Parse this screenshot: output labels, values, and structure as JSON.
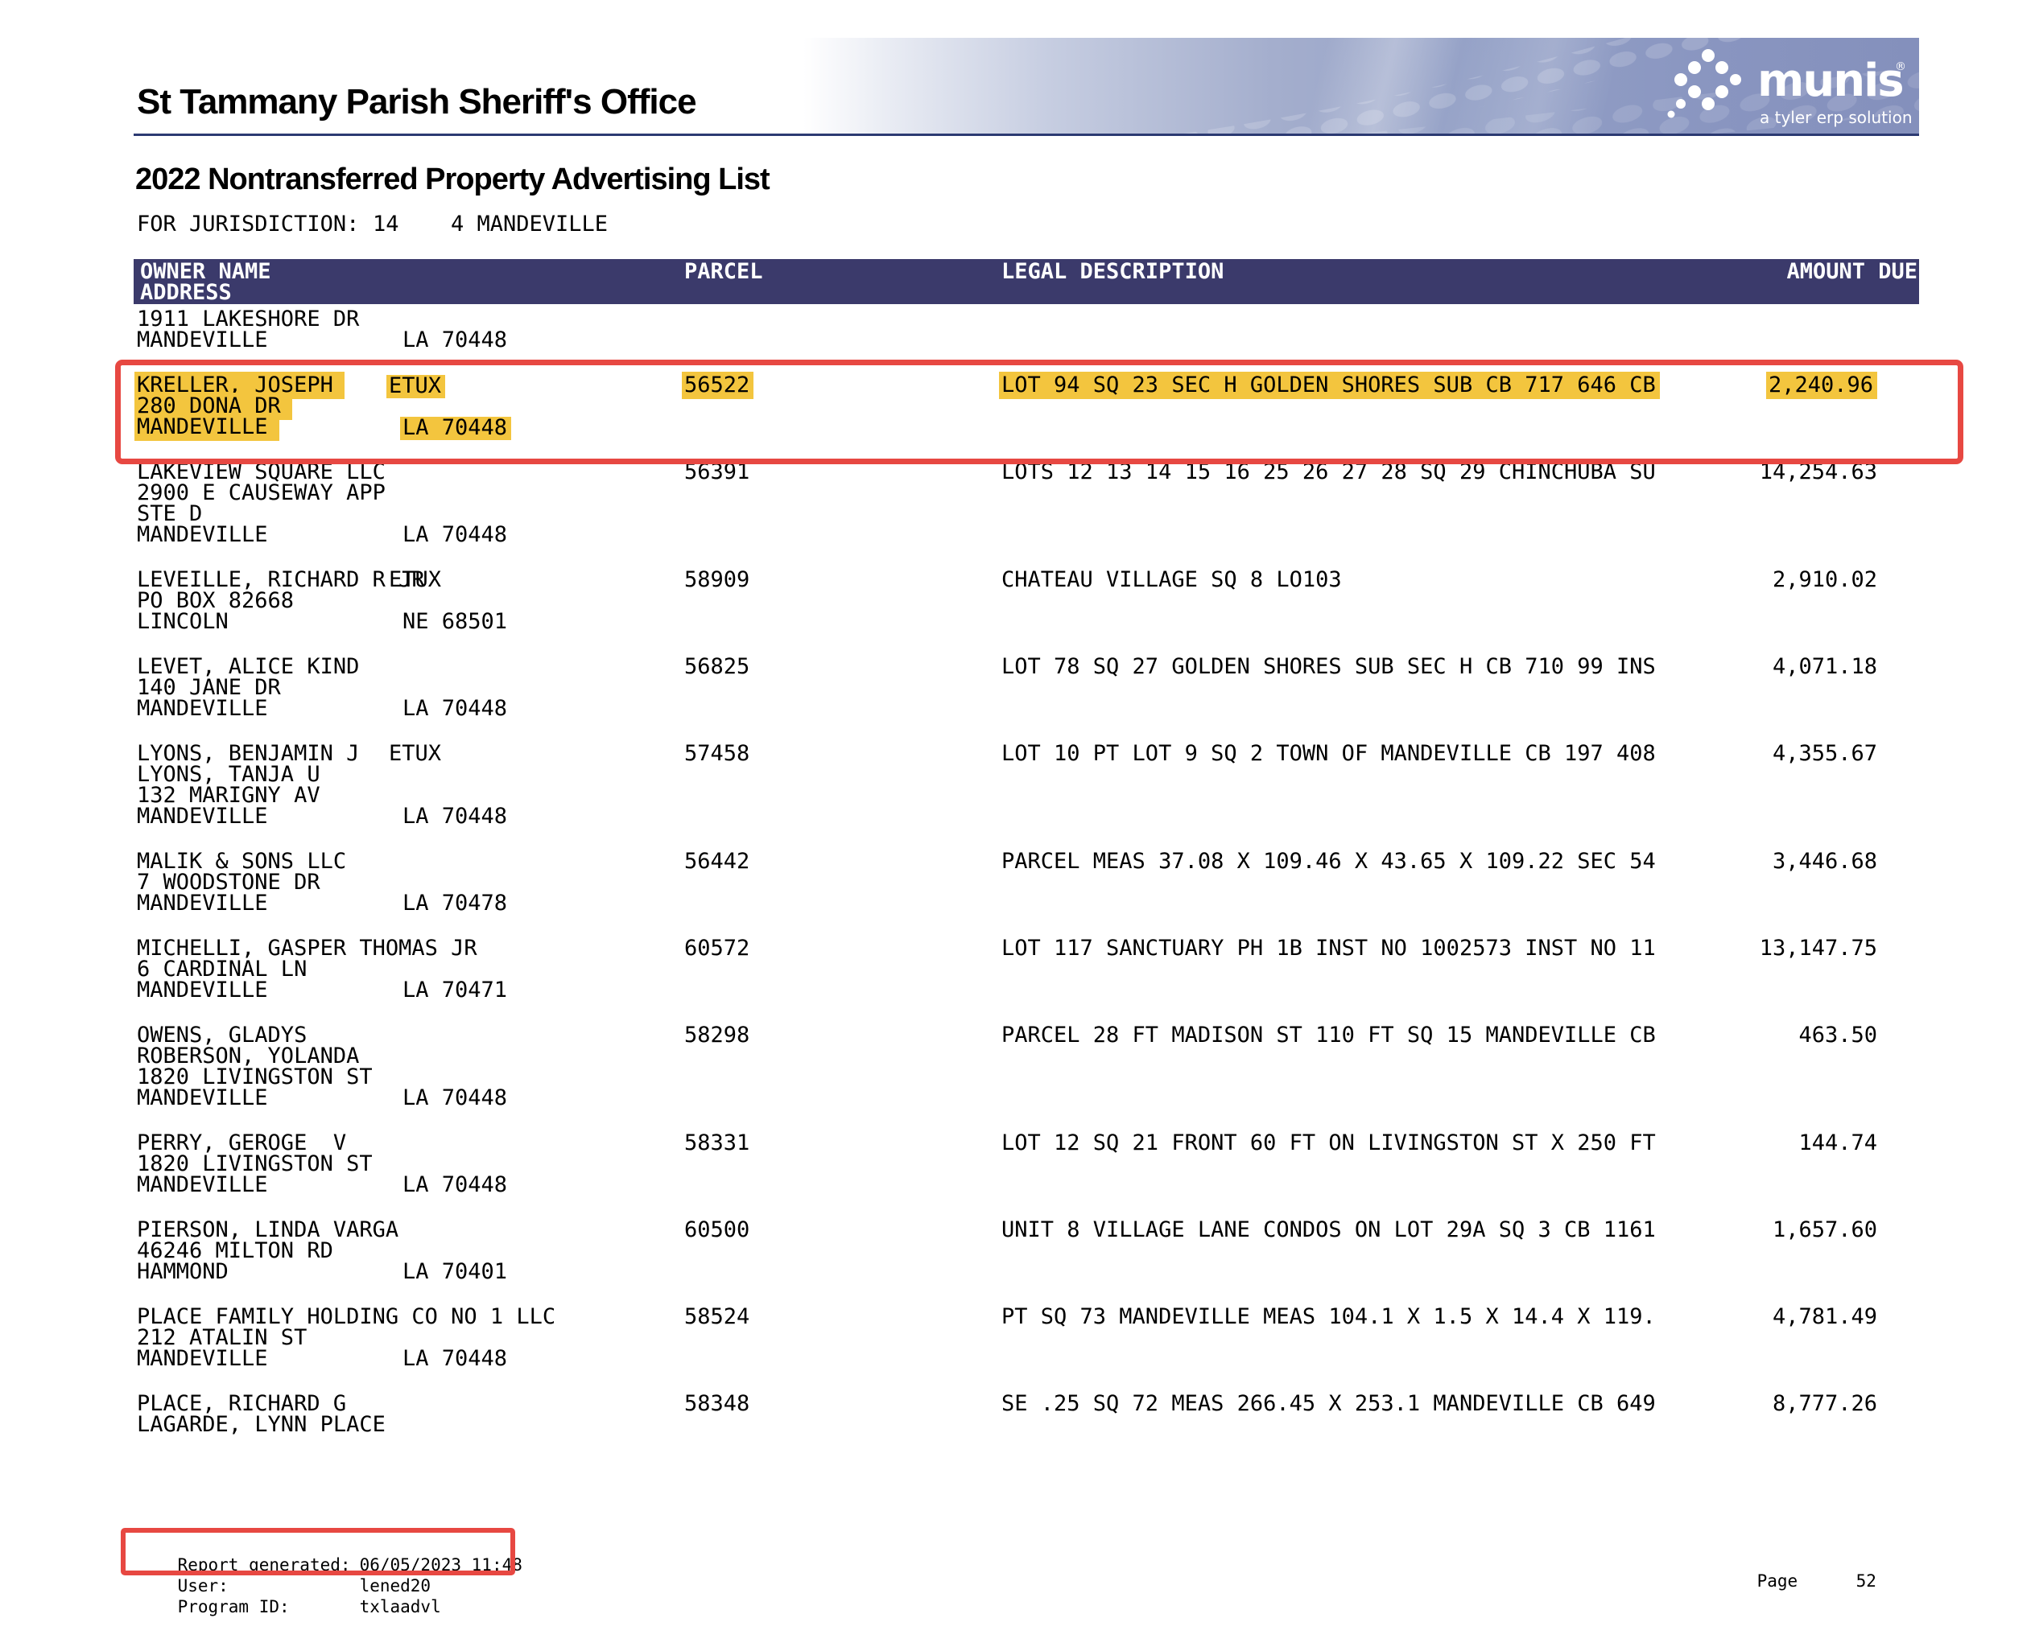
{
  "colors": {
    "header_bar": "#3b3a6b",
    "highlight_yellow": "#f3c53e",
    "annotation_red": "#e74842",
    "banner_blue": "#8490bc",
    "rule_navy": "#2c3a72"
  },
  "header": {
    "agency": "St Tammany Parish Sheriff's Office",
    "report_title": "2022 Nontransferred Property Advertising List",
    "jurisdiction": {
      "label": "FOR JURISDICTION:",
      "code": "14",
      "name": "4 MANDEVILLE"
    },
    "logo": {
      "word": "munis",
      "registered_mark": "®",
      "tagline": "a tyler erp solution"
    }
  },
  "table": {
    "columns": {
      "owner": "OWNER NAME",
      "address": "ADDRESS",
      "parcel": "PARCEL",
      "legal": "LEGAL DESCRIPTION",
      "amount": "AMOUNT DUE"
    },
    "rows": [
      {
        "lines": [
          {
            "t": "1911 LAKESHORE DR"
          },
          {
            "t": "MANDEVILLE",
            "tail": "LA 70448",
            "tk": "s"
          }
        ]
      },
      {
        "hl": true,
        "lines": [
          {
            "t": "KRELLER, JOSEPH",
            "tail": "ETUX",
            "tk": "n"
          },
          {
            "t": "280 DONA DR"
          },
          {
            "t": "MANDEVILLE",
            "tail": "LA 70448",
            "tk": "s"
          }
        ],
        "parcel": "56522",
        "legal": "LOT 94 SQ 23 SEC H GOLDEN SHORES SUB CB 717 646 CB",
        "amount": "2,240.96"
      },
      {
        "lines": [
          {
            "t": "LAKEVIEW SQUARE LLC"
          },
          {
            "t": "2900 E CAUSEWAY APP"
          },
          {
            "t": "STE D"
          },
          {
            "t": "MANDEVILLE",
            "tail": "LA 70448",
            "tk": "s"
          }
        ],
        "parcel": "56391",
        "legal": "LOTS 12 13 14 15 16 25 26 27 28 SQ 29 CHINCHUBA SU",
        "amount": "14,254.63"
      },
      {
        "lines": [
          {
            "t": "LEVEILLE, RICHARD R JR",
            "tail": "ETUX",
            "tk": "n"
          },
          {
            "t": "PO BOX 82668"
          },
          {
            "t": "LINCOLN",
            "tail": "NE 68501",
            "tk": "s"
          }
        ],
        "parcel": "58909",
        "legal": "CHATEAU VILLAGE SQ 8 LO103",
        "amount": "2,910.02"
      },
      {
        "lines": [
          {
            "t": "LEVET, ALICE KIND"
          },
          {
            "t": "140 JANE DR"
          },
          {
            "t": "MANDEVILLE",
            "tail": "LA 70448",
            "tk": "s"
          }
        ],
        "parcel": "56825",
        "legal": "LOT 78 SQ 27 GOLDEN SHORES SUB SEC H CB 710 99 INS",
        "amount": "4,071.18"
      },
      {
        "lines": [
          {
            "t": "LYONS, BENJAMIN J",
            "tail": "ETUX",
            "tk": "n"
          },
          {
            "t": "LYONS, TANJA U"
          },
          {
            "t": "132 MARIGNY AV"
          },
          {
            "t": "MANDEVILLE",
            "tail": "LA 70448",
            "tk": "s"
          }
        ],
        "parcel": "57458",
        "legal": "LOT 10 PT LOT 9 SQ 2 TOWN OF MANDEVILLE CB 197 408",
        "amount": "4,355.67"
      },
      {
        "lines": [
          {
            "t": "MALIK & SONS LLC"
          },
          {
            "t": "7 WOODSTONE DR"
          },
          {
            "t": "MANDEVILLE",
            "tail": "LA 70478",
            "tk": "s"
          }
        ],
        "parcel": "56442",
        "legal": "PARCEL MEAS 37.08 X 109.46 X 43.65 X 109.22 SEC 54",
        "amount": "3,446.68"
      },
      {
        "lines": [
          {
            "t": "MICHELLI, GASPER THOMAS JR"
          },
          {
            "t": "6 CARDINAL LN"
          },
          {
            "t": "MANDEVILLE",
            "tail": "LA 70471",
            "tk": "s"
          }
        ],
        "parcel": "60572",
        "legal": "LOT 117 SANCTUARY PH 1B INST NO 1002573 INST NO 11",
        "amount": "13,147.75"
      },
      {
        "lines": [
          {
            "t": "OWENS, GLADYS"
          },
          {
            "t": "ROBERSON, YOLANDA"
          },
          {
            "t": "1820 LIVINGSTON ST"
          },
          {
            "t": "MANDEVILLE",
            "tail": "LA 70448",
            "tk": "s"
          }
        ],
        "parcel": "58298",
        "legal": "PARCEL 28 FT MADISON ST 110 FT SQ 15 MANDEVILLE CB",
        "amount": "463.50"
      },
      {
        "lines": [
          {
            "t": "PERRY, GEROGE  V"
          },
          {
            "t": "1820 LIVINGSTON ST"
          },
          {
            "t": "MANDEVILLE",
            "tail": "LA 70448",
            "tk": "s"
          }
        ],
        "parcel": "58331",
        "legal": "LOT 12 SQ 21 FRONT 60 FT ON LIVINGSTON ST X 250 FT",
        "amount": "144.74"
      },
      {
        "lines": [
          {
            "t": "PIERSON, LINDA VARGA"
          },
          {
            "t": "46246 MILTON RD"
          },
          {
            "t": "HAMMOND",
            "tail": "LA 70401",
            "tk": "s"
          }
        ],
        "parcel": "60500",
        "legal": "UNIT 8 VILLAGE LANE CONDOS ON LOT 29A SQ 3 CB 1161",
        "amount": "1,657.60"
      },
      {
        "lines": [
          {
            "t": "PLACE FAMILY HOLDING CO NO 1 LLC"
          },
          {
            "t": "212 ATALIN ST"
          },
          {
            "t": "MANDEVILLE",
            "tail": "LA 70448",
            "tk": "s"
          }
        ],
        "parcel": "58524",
        "legal": "PT SQ 73 MANDEVILLE MEAS 104.1 X 1.5 X 14.4 X 119.",
        "amount": "4,781.49"
      },
      {
        "lines": [
          {
            "t": "PLACE, RICHARD G"
          },
          {
            "t": "LAGARDE, LYNN PLACE"
          }
        ],
        "parcel": "58348",
        "legal": "SE .25 SQ 72 MEAS 266.45 X 253.1 MANDEVILLE CB 649",
        "amount": "8,777.26"
      }
    ]
  },
  "footer": {
    "report_generated_label": "Report generated:",
    "report_generated_value": "06/05/2023 11:48",
    "user_label": "User:",
    "user_value": "lened20",
    "program_id_label": "Program ID:",
    "program_id_value": "txlaadvl",
    "page_label": "Page",
    "page_number": "52"
  }
}
